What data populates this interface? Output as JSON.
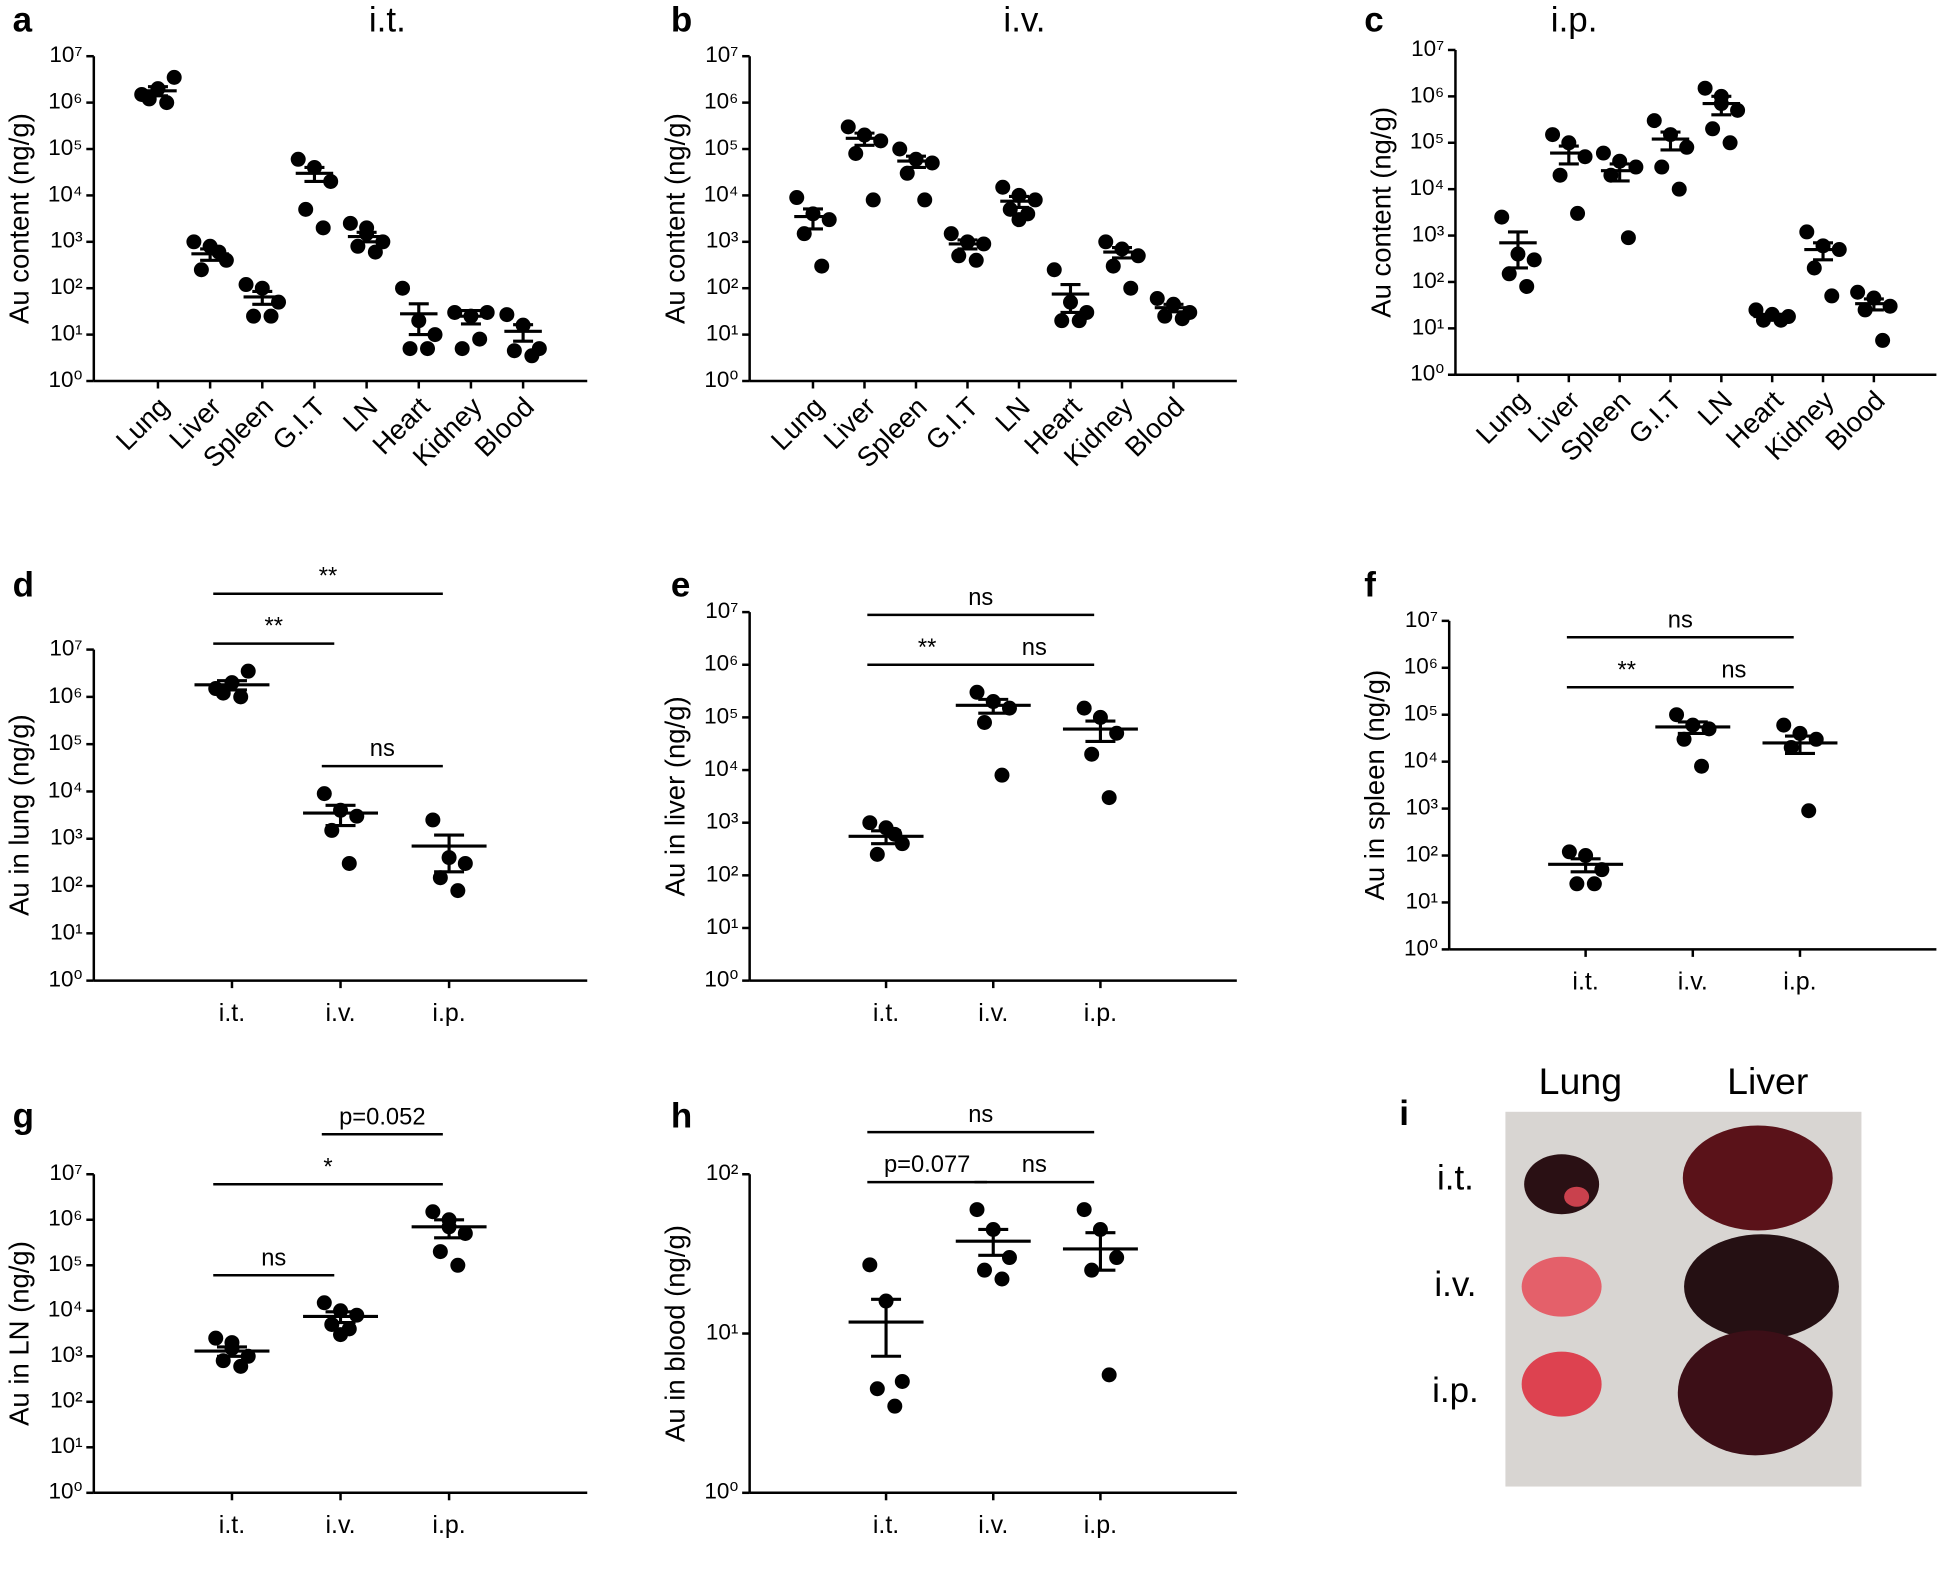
{
  "chart_data": [
    {
      "type": "scatter",
      "panel_label": "a",
      "title": "i.t.",
      "y_label": "Au content (ng/g)",
      "log_scale": true,
      "color": "#000000",
      "categories": [
        "Lung",
        "Liver",
        "Spleen",
        "G.I.T",
        "LN",
        "Heart",
        "Kidney",
        "Blood"
      ],
      "values": [
        [
          1500000,
          2000000,
          3500000,
          1200000,
          1000000
        ],
        [
          1000,
          800,
          400,
          250,
          600
        ],
        [
          120,
          100,
          50,
          25,
          25
        ],
        [
          60000,
          40000,
          20000,
          5000,
          2000
        ],
        [
          2500,
          2000,
          1000,
          800,
          600,
          1500
        ],
        [
          100,
          20,
          10,
          5,
          5
        ],
        [
          30,
          25,
          30,
          5,
          8
        ],
        [
          27,
          16,
          5,
          4.5,
          3.5
        ]
      ],
      "mean": [
        1800000,
        550,
        65,
        30000,
        1300,
        28,
        25,
        11.8
      ],
      "sem": [
        400000,
        150,
        20,
        10000,
        300,
        18,
        8,
        4.6
      ],
      "ylim": [
        1,
        10000000
      ],
      "yticks": [
        {
          "value": 1,
          "label": "10⁰"
        },
        {
          "value": 10,
          "label": "10¹"
        },
        {
          "value": 100,
          "label": "10²"
        },
        {
          "value": 1000,
          "label": "10³"
        },
        {
          "value": 10000,
          "label": "10⁴"
        },
        {
          "value": 100000,
          "label": "10⁵"
        },
        {
          "value": 1000000,
          "label": "10⁶"
        },
        {
          "value": 10000000,
          "label": "10⁷"
        }
      ]
    },
    {
      "type": "scatter",
      "panel_label": "b",
      "title": "i.v.",
      "y_label": "Au content (ng/g)",
      "log_scale": true,
      "color": "#000000",
      "categories": [
        "Lung",
        "Liver",
        "Spleen",
        "G.I.T",
        "LN",
        "Heart",
        "Kidney",
        "Blood"
      ],
      "values": [
        [
          9000,
          4000,
          3000,
          1500,
          300
        ],
        [
          300000,
          200000,
          150000,
          80000,
          8000
        ],
        [
          100000,
          60000,
          50000,
          30000,
          8000
        ],
        [
          1500,
          1000,
          900,
          500,
          400
        ],
        [
          15000,
          10000,
          8000,
          5000,
          4000,
          3000
        ],
        [
          250,
          50,
          30,
          20,
          20
        ],
        [
          1000,
          700,
          500,
          300,
          100
        ],
        [
          60,
          45,
          30,
          25,
          22
        ]
      ],
      "mean": [
        3500,
        170000,
        55000,
        900,
        7500,
        75,
        600,
        38
      ],
      "sem": [
        1600,
        50000,
        15000,
        200,
        2000,
        45,
        150,
        7
      ],
      "ylim": [
        1,
        10000000
      ],
      "yticks": [
        {
          "value": 1,
          "label": "10⁰"
        },
        {
          "value": 10,
          "label": "10¹"
        },
        {
          "value": 100,
          "label": "10²"
        },
        {
          "value": 1000,
          "label": "10³"
        },
        {
          "value": 10000,
          "label": "10⁴"
        },
        {
          "value": 100000,
          "label": "10⁵"
        },
        {
          "value": 1000000,
          "label": "10⁶"
        },
        {
          "value": 10000000,
          "label": "10⁷"
        }
      ]
    },
    {
      "type": "scatter",
      "panel_label": "c",
      "title": "i.p.",
      "y_label": "Au content (ng/g)",
      "log_scale": true,
      "color": "#000000",
      "categories": [
        "Lung",
        "Liver",
        "Spleen",
        "G.I.T",
        "LN",
        "Heart",
        "Kidney",
        "Blood"
      ],
      "values": [
        [
          2500,
          400,
          300,
          150,
          80
        ],
        [
          150000,
          100000,
          50000,
          20000,
          3000
        ],
        [
          60000,
          40000,
          30000,
          20000,
          900
        ],
        [
          300000,
          150000,
          80000,
          30000,
          10000
        ],
        [
          1500000,
          1000000,
          500000,
          200000,
          100000,
          700000
        ],
        [
          25,
          20,
          18,
          15,
          15
        ],
        [
          1200,
          600,
          500,
          200,
          50
        ],
        [
          60,
          45,
          30,
          25,
          5.5
        ]
      ],
      "mean": [
        700,
        60000,
        25000,
        120000,
        700000,
        18,
        500,
        34
      ],
      "sem": [
        500,
        25000,
        10000,
        50000,
        300000,
        2,
        200,
        9
      ],
      "ylim": [
        1,
        10000000
      ],
      "yticks": [
        {
          "value": 1,
          "label": "10⁰"
        },
        {
          "value": 10,
          "label": "10¹"
        },
        {
          "value": 100,
          "label": "10²"
        },
        {
          "value": 1000,
          "label": "10³"
        },
        {
          "value": 10000,
          "label": "10⁴"
        },
        {
          "value": 100000,
          "label": "10⁵"
        },
        {
          "value": 1000000,
          "label": "10⁶"
        },
        {
          "value": 10000000,
          "label": "10⁷"
        }
      ]
    },
    {
      "type": "scatter",
      "panel_label": "d",
      "y_label": "Au in lung (ng/g)",
      "log_scale": true,
      "color": "#000000",
      "categories": [
        "i.t.",
        "i.v.",
        "i.p."
      ],
      "values": [
        [
          1500000,
          2000000,
          3500000,
          1200000,
          1000000
        ],
        [
          9000,
          4000,
          3000,
          1500,
          300
        ],
        [
          2500,
          400,
          300,
          150,
          80
        ]
      ],
      "mean": [
        1800000,
        3500,
        700
      ],
      "sem": [
        400000,
        1600,
        500
      ],
      "comparisons": [
        {
          "from": 1,
          "to": 2,
          "label": "ns"
        },
        {
          "from": 0,
          "to": 1,
          "label": "**"
        },
        {
          "from": 0,
          "to": 2,
          "label": "**"
        }
      ],
      "ylim": [
        1,
        10000000
      ],
      "yticks": [
        {
          "value": 1,
          "label": "10⁰"
        },
        {
          "value": 10,
          "label": "10¹"
        },
        {
          "value": 100,
          "label": "10²"
        },
        {
          "value": 1000,
          "label": "10³"
        },
        {
          "value": 10000,
          "label": "10⁴"
        },
        {
          "value": 100000,
          "label": "10⁵"
        },
        {
          "value": 1000000,
          "label": "10⁶"
        },
        {
          "value": 10000000,
          "label": "10⁷"
        }
      ]
    },
    {
      "type": "scatter",
      "panel_label": "e",
      "y_label": "Au in liver (ng/g)",
      "log_scale": true,
      "color": "#000000",
      "categories": [
        "i.t.",
        "i.v.",
        "i.p."
      ],
      "values": [
        [
          1000,
          800,
          400,
          250,
          600
        ],
        [
          300000,
          200000,
          150000,
          80000,
          8000
        ],
        [
          150000,
          100000,
          50000,
          20000,
          3000
        ]
      ],
      "mean": [
        550,
        170000,
        60000
      ],
      "sem": [
        150,
        50000,
        25000
      ],
      "comparisons": [
        {
          "from": 0,
          "to": 1,
          "label": "**"
        },
        {
          "from": 1,
          "to": 2,
          "label": "ns"
        },
        {
          "from": 0,
          "to": 2,
          "label": "ns"
        }
      ],
      "ylim": [
        1,
        10000000
      ],
      "yticks": [
        {
          "value": 1,
          "label": "10⁰"
        },
        {
          "value": 10,
          "label": "10¹"
        },
        {
          "value": 100,
          "label": "10²"
        },
        {
          "value": 1000,
          "label": "10³"
        },
        {
          "value": 10000,
          "label": "10⁴"
        },
        {
          "value": 100000,
          "label": "10⁵"
        },
        {
          "value": 1000000,
          "label": "10⁶"
        },
        {
          "value": 10000000,
          "label": "10⁷"
        }
      ]
    },
    {
      "type": "scatter",
      "panel_label": "f",
      "y_label": "Au in spleen (ng/g)",
      "log_scale": true,
      "color": "#000000",
      "categories": [
        "i.t.",
        "i.v.",
        "i.p."
      ],
      "values": [
        [
          120,
          100,
          50,
          25,
          25
        ],
        [
          100000,
          60000,
          50000,
          30000,
          8000
        ],
        [
          60000,
          40000,
          30000,
          20000,
          900
        ]
      ],
      "mean": [
        65,
        55000,
        25000
      ],
      "sem": [
        20,
        15000,
        10000
      ],
      "comparisons": [
        {
          "from": 0,
          "to": 1,
          "label": "**"
        },
        {
          "from": 1,
          "to": 2,
          "label": "ns"
        },
        {
          "from": 0,
          "to": 2,
          "label": "ns"
        }
      ],
      "ylim": [
        1,
        10000000
      ],
      "yticks": [
        {
          "value": 1,
          "label": "10⁰"
        },
        {
          "value": 10,
          "label": "10¹"
        },
        {
          "value": 100,
          "label": "10²"
        },
        {
          "value": 1000,
          "label": "10³"
        },
        {
          "value": 10000,
          "label": "10⁴"
        },
        {
          "value": 100000,
          "label": "10⁵"
        },
        {
          "value": 1000000,
          "label": "10⁶"
        },
        {
          "value": 10000000,
          "label": "10⁷"
        }
      ]
    },
    {
      "type": "scatter",
      "panel_label": "g",
      "y_label": "Au in LN (ng/g)",
      "log_scale": true,
      "color": "#000000",
      "categories": [
        "i.t.",
        "i.v.",
        "i.p."
      ],
      "values": [
        [
          2500,
          2000,
          1000,
          800,
          600,
          1500
        ],
        [
          15000,
          10000,
          8000,
          5000,
          4000,
          3000
        ],
        [
          1500000,
          1000000,
          500000,
          200000,
          100000,
          700000
        ]
      ],
      "mean": [
        1300,
        7500,
        700000
      ],
      "sem": [
        300,
        2000,
        300000
      ],
      "comparisons": [
        {
          "from": 0,
          "to": 1,
          "label": "ns"
        },
        {
          "from": 0,
          "to": 2,
          "label": "*"
        },
        {
          "from": 1,
          "to": 2,
          "label": "p=0.052"
        }
      ],
      "ylim": [
        1,
        10000000
      ],
      "yticks": [
        {
          "value": 1,
          "label": "10⁰"
        },
        {
          "value": 10,
          "label": "10¹"
        },
        {
          "value": 100,
          "label": "10²"
        },
        {
          "value": 1000,
          "label": "10³"
        },
        {
          "value": 10000,
          "label": "10⁴"
        },
        {
          "value": 100000,
          "label": "10⁵"
        },
        {
          "value": 1000000,
          "label": "10⁶"
        },
        {
          "value": 10000000,
          "label": "10⁷"
        }
      ]
    },
    {
      "type": "scatter",
      "panel_label": "h",
      "y_label": "Au in blood (ng/g)",
      "log_scale": true,
      "color": "#000000",
      "categories": [
        "i.t.",
        "i.v.",
        "i.p."
      ],
      "values": [
        [
          27,
          16,
          5,
          4.5,
          3.5
        ],
        [
          60,
          45,
          30,
          25,
          22
        ],
        [
          60,
          45,
          30,
          25,
          5.5
        ]
      ],
      "mean": [
        11.8,
        38,
        34
      ],
      "sem": [
        4.6,
        7,
        9
      ],
      "comparisons": [
        {
          "from": 0,
          "to": 1,
          "label": "p=0.077"
        },
        {
          "from": 1,
          "to": 2,
          "label": "ns"
        },
        {
          "from": 0,
          "to": 2,
          "label": "ns"
        }
      ],
      "ylim": [
        1,
        100
      ],
      "yticks": [
        {
          "value": 1,
          "label": "10⁰"
        },
        {
          "value": 10,
          "label": "10¹"
        },
        {
          "value": 100,
          "label": "10²"
        }
      ]
    }
  ],
  "photo": {
    "panel_label": "i",
    "columns": [
      "Lung",
      "Liver"
    ],
    "rows": [
      "i.t.",
      "i.v.",
      "i.p."
    ]
  }
}
